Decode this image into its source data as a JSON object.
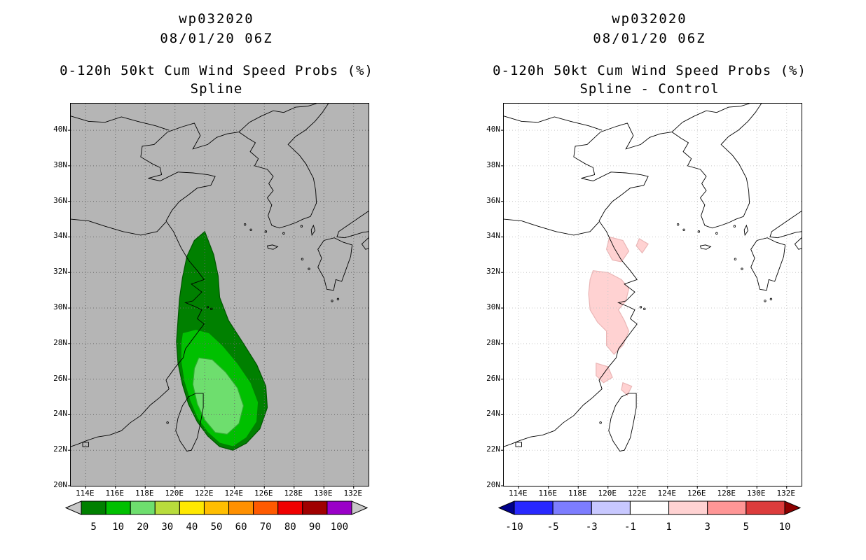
{
  "axes": {
    "lon_range": [
      113,
      133
    ],
    "lat_range": [
      20,
      41.5
    ],
    "lat_labels": [
      "40N",
      "38N",
      "36N",
      "34N",
      "32N",
      "30N",
      "28N",
      "26N",
      "24N",
      "22N",
      "20N"
    ],
    "lat_values": [
      40,
      38,
      36,
      34,
      32,
      30,
      28,
      26,
      24,
      22,
      20
    ],
    "lon_labels": [
      "114E",
      "116E",
      "118E",
      "120E",
      "122E",
      "124E",
      "126E",
      "128E",
      "130E",
      "132E"
    ],
    "lon_values": [
      114,
      116,
      118,
      120,
      122,
      124,
      126,
      128,
      130,
      132
    ]
  },
  "panels": [
    {
      "storm_id": "wp032020",
      "datetime": "08/01/20 06Z",
      "title": "0-120h 50kt Cum Wind Speed Probs (%)",
      "subtitle": "Spline",
      "map_bg": "#b5b5b5",
      "grid_color": "#6a6a6a",
      "coast_color": "#000000",
      "colorbar": {
        "label_mode": "center",
        "labels": [
          "5",
          "10",
          "20",
          "30",
          "40",
          "50",
          "60",
          "70",
          "80",
          "90",
          "100"
        ],
        "cell_colors": [
          "#008000",
          "#00c000",
          "#6ede6e",
          "#b8dc3c",
          "#ffe800",
          "#ffbe00",
          "#ff9000",
          "#ff5a00",
          "#f00000",
          "#a00000",
          "#9a00c8"
        ],
        "arrow_left_color": "#c8c8c8",
        "arrow_right_color": "#c8c8c8"
      }
    },
    {
      "storm_id": "wp032020",
      "datetime": "08/01/20 06Z",
      "title": "0-120h 50kt Cum Wind Speed Probs (%)",
      "subtitle": "Spline - Control",
      "map_bg": "#ffffff",
      "grid_color": "#c9c9c9",
      "coast_color": "#000000",
      "colorbar": {
        "label_mode": "edge",
        "labels": [
          "-10",
          "-5",
          "-3",
          "-1",
          "1",
          "3",
          "5",
          "10"
        ],
        "cell_colors": [
          "#2828ff",
          "#7d7dff",
          "#c8c8ff",
          "#ffffff",
          "#ffd2d2",
          "#ff9696",
          "#dc3c3c"
        ],
        "arrow_left_color": "#00008c",
        "arrow_right_color": "#8c0000"
      }
    }
  ],
  "chart_data": [
    {
      "type": "filled_contour_map",
      "title": "wp032020 08/01/20 06Z 0-120h 50kt Cum Wind Speed Probs (%) Spline",
      "units": "%",
      "lon_range": [
        113,
        133
      ],
      "lat_range": [
        20,
        41.5
      ],
      "levels": [
        5,
        10,
        20,
        30,
        40,
        50,
        60,
        70,
        80,
        90,
        100
      ],
      "legend_position": "bottom",
      "grid": true,
      "regions": [
        {
          "level": 5,
          "color": "#008000",
          "stroke": "#005500",
          "polygon": [
            [
              122.0,
              34.3
            ],
            [
              122.6,
              33.0
            ],
            [
              122.9,
              31.8
            ],
            [
              123.0,
              30.6
            ],
            [
              123.6,
              29.3
            ],
            [
              124.6,
              28.0
            ],
            [
              125.5,
              26.8
            ],
            [
              126.1,
              25.6
            ],
            [
              126.2,
              24.4
            ],
            [
              125.7,
              23.2
            ],
            [
              124.8,
              22.4
            ],
            [
              123.9,
              22.0
            ],
            [
              123.0,
              22.2
            ],
            [
              122.2,
              22.8
            ],
            [
              121.5,
              23.6
            ],
            [
              120.9,
              24.6
            ],
            [
              120.5,
              25.7
            ],
            [
              120.2,
              26.9
            ],
            [
              120.1,
              28.1
            ],
            [
              120.2,
              29.3
            ],
            [
              120.3,
              30.5
            ],
            [
              120.5,
              31.7
            ],
            [
              120.8,
              32.9
            ],
            [
              121.3,
              33.8
            ]
          ]
        },
        {
          "level": 10,
          "color": "#00c000",
          "stroke": "#008000",
          "polygon": [
            [
              120.5,
              28.6
            ],
            [
              121.4,
              28.8
            ],
            [
              122.3,
              28.6
            ],
            [
              123.2,
              27.9
            ],
            [
              124.2,
              26.9
            ],
            [
              125.1,
              25.8
            ],
            [
              125.6,
              24.7
            ],
            [
              125.5,
              23.6
            ],
            [
              124.8,
              22.7
            ],
            [
              123.9,
              22.2
            ],
            [
              123.0,
              22.4
            ],
            [
              122.2,
              23.0
            ],
            [
              121.5,
              23.8
            ],
            [
              121.0,
              24.8
            ],
            [
              120.6,
              25.9
            ],
            [
              120.4,
              27.0
            ],
            [
              120.4,
              28.0
            ]
          ]
        },
        {
          "level": 20,
          "color": "#6ede6e",
          "stroke": "#2eae2e",
          "polygon": [
            [
              121.6,
              27.2
            ],
            [
              122.5,
              27.1
            ],
            [
              123.4,
              26.4
            ],
            [
              124.2,
              25.5
            ],
            [
              124.6,
              24.5
            ],
            [
              124.3,
              23.5
            ],
            [
              123.5,
              22.9
            ],
            [
              122.7,
              23.0
            ],
            [
              122.0,
              23.7
            ],
            [
              121.5,
              24.6
            ],
            [
              121.2,
              25.7
            ],
            [
              121.3,
              26.6
            ]
          ]
        }
      ]
    },
    {
      "type": "filled_contour_map",
      "title": "wp032020 08/01/20 06Z 0-120h 50kt Cum Wind Speed Probs (%) Spline - Control",
      "units": "%",
      "lon_range": [
        113,
        133
      ],
      "lat_range": [
        20,
        41.5
      ],
      "levels": [
        -10,
        -5,
        -3,
        -1,
        1,
        3,
        5,
        10
      ],
      "legend_position": "bottom",
      "grid": true,
      "regions": [
        {
          "level": 1,
          "color": "#ffd2d2",
          "stroke": "#eab6b6",
          "polygon": [
            [
              120.1,
              34.0
            ],
            [
              121.0,
              33.8
            ],
            [
              121.4,
              33.2
            ],
            [
              120.9,
              32.6
            ],
            [
              120.3,
              32.7
            ],
            [
              119.9,
              33.3
            ]
          ]
        },
        {
          "level": 1,
          "color": "#ffd2d2",
          "stroke": "#eab6b6",
          "polygon": [
            [
              119.0,
              32.1
            ],
            [
              120.0,
              32.0
            ],
            [
              120.9,
              31.6
            ],
            [
              121.4,
              31.1
            ],
            [
              121.2,
              30.4
            ],
            [
              120.7,
              29.9
            ],
            [
              121.1,
              29.3
            ],
            [
              121.4,
              28.7
            ],
            [
              121.0,
              27.9
            ],
            [
              120.4,
              27.4
            ],
            [
              119.9,
              27.9
            ],
            [
              119.9,
              28.7
            ],
            [
              119.3,
              29.2
            ],
            [
              118.8,
              29.9
            ],
            [
              118.7,
              30.8
            ],
            [
              118.8,
              31.6
            ]
          ]
        },
        {
          "level": 1,
          "color": "#ffd2d2",
          "stroke": "#eab6b6",
          "polygon": [
            [
              119.2,
              26.9
            ],
            [
              120.0,
              26.7
            ],
            [
              120.3,
              26.1
            ],
            [
              119.7,
              25.8
            ],
            [
              119.2,
              26.2
            ]
          ]
        },
        {
          "level": 1,
          "color": "#ffd2d2",
          "stroke": "#eab6b6",
          "polygon": [
            [
              121.0,
              25.8
            ],
            [
              121.6,
              25.6
            ],
            [
              121.3,
              25.1
            ],
            [
              120.9,
              25.4
            ]
          ]
        },
        {
          "level": 1,
          "color": "#ffd2d2",
          "stroke": "#eab6b6",
          "polygon": [
            [
              122.1,
              33.9
            ],
            [
              122.7,
              33.6
            ],
            [
              122.3,
              33.1
            ],
            [
              121.9,
              33.5
            ]
          ]
        }
      ]
    }
  ]
}
